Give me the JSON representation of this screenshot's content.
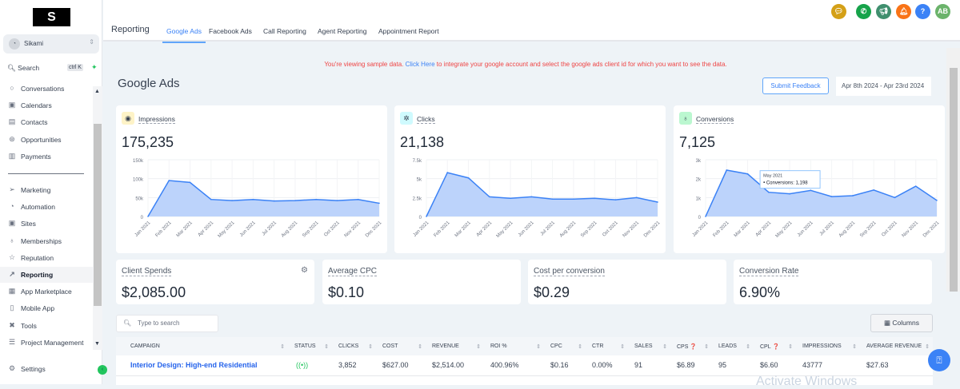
{
  "sidebar": {
    "logo": "S",
    "account": "Sikami",
    "search": "Search",
    "shortcut": "ctrl K",
    "items": [
      {
        "label": "Conversations",
        "icon": "chat-icon"
      },
      {
        "label": "Calendars",
        "icon": "calendar-icon"
      },
      {
        "label": "Contacts",
        "icon": "contacts-icon"
      },
      {
        "label": "Opportunities",
        "icon": "opportunities-icon"
      },
      {
        "label": "Payments",
        "icon": "payments-icon"
      }
    ],
    "items2": [
      {
        "label": "Marketing",
        "icon": "send-icon"
      },
      {
        "label": "Automation",
        "icon": "automation-icon"
      },
      {
        "label": "Sites",
        "icon": "sites-icon"
      },
      {
        "label": "Memberships",
        "icon": "award-icon"
      },
      {
        "label": "Reputation",
        "icon": "star-icon"
      },
      {
        "label": "Reporting",
        "icon": "trending-up-icon",
        "active": true
      },
      {
        "label": "App Marketplace",
        "icon": "grid-icon"
      },
      {
        "label": "Mobile App",
        "icon": "mobile-icon"
      },
      {
        "label": "Tools",
        "icon": "tools-icon"
      },
      {
        "label": "Project Management",
        "icon": "list-icon"
      }
    ],
    "settings": "Settings"
  },
  "topbar": {
    "title": "Reporting",
    "tabs": [
      "Google Ads",
      "Facebook Ads",
      "Call Reporting",
      "Agent Reporting",
      "Appointment Report"
    ],
    "active_tab": "Google Ads",
    "avatar": "AB",
    "help": "?",
    "icon_colors": {
      "chat": "#d4a017",
      "phone": "#16a34a",
      "megaphone": "#3f8f6e",
      "bell": "#f97316",
      "help": "#3b82f6",
      "avatar": "#6bb36b"
    }
  },
  "notice": {
    "prefix": "You're viewing sample data.",
    "link": "Click Here",
    "suffix": "to integrate your google account and select the google ads client id for which you want to see the data."
  },
  "page": {
    "title": "Google Ads",
    "feedback": "Submit Feedback",
    "date_range": "Apr 8th 2024 - Apr 23rd 2024"
  },
  "metrics": [
    {
      "label": "Impressions",
      "value": "175,235",
      "icon": "eye-icon"
    },
    {
      "label": "Clicks",
      "value": "21,138",
      "icon": "cursor-click-icon"
    },
    {
      "label": "Conversions",
      "value": "7,125",
      "icon": "bulb-icon"
    }
  ],
  "chart_data": [
    {
      "type": "area",
      "title": "Impressions",
      "categories": [
        "Jan 2021",
        "Feb 2021",
        "Mar 2021",
        "Apr 2021",
        "May 2021",
        "Jun 2021",
        "Jul 2021",
        "Aug 2021",
        "Sep 2021",
        "Oct 2021",
        "Nov 2021",
        "Dec 2021"
      ],
      "values": [
        0,
        95000,
        90000,
        45000,
        42000,
        45000,
        41000,
        42000,
        45000,
        42000,
        45000,
        35000
      ],
      "ylim": [
        0,
        150000
      ],
      "yticks": [
        "0",
        "50k",
        "100k",
        "150k"
      ],
      "grid": true,
      "color": "#3b82f6"
    },
    {
      "type": "area",
      "title": "Clicks",
      "categories": [
        "Jan 2021",
        "Feb 2021",
        "Mar 2021",
        "Apr 2021",
        "May 2021",
        "Jun 2021",
        "Jul 2021",
        "Aug 2021",
        "Sep 2021",
        "Oct 2021",
        "Nov 2021",
        "Dec 2021"
      ],
      "values": [
        0,
        5800,
        5100,
        2600,
        2400,
        2600,
        2300,
        2300,
        2400,
        2200,
        2500,
        1900
      ],
      "ylim": [
        0,
        7500
      ],
      "yticks": [
        "0",
        "2.5k",
        "5k",
        "7.5k"
      ],
      "grid": true,
      "color": "#3b82f6"
    },
    {
      "type": "area",
      "title": "Conversions",
      "categories": [
        "Jan 2021",
        "Feb 2021",
        "Mar 2021",
        "Apr 2021",
        "May 2021",
        "Jun 2021",
        "Jul 2021",
        "Aug 2021",
        "Sep 2021",
        "Oct 2021",
        "Nov 2021",
        "Dec 2021"
      ],
      "values": [
        0,
        2450,
        2250,
        1280,
        1198,
        1380,
        1050,
        1100,
        1400,
        1000,
        1600,
        850
      ],
      "ylim": [
        0,
        3000
      ],
      "yticks": [
        "0",
        "1k",
        "2k",
        "3k"
      ],
      "grid": true,
      "color": "#3b82f6",
      "tooltip": {
        "title": "May 2021",
        "text": "Conversions: 1,198"
      }
    }
  ],
  "stats": [
    {
      "label": "Client Spends",
      "value": "$2,085.00"
    },
    {
      "label": "Average CPC",
      "value": "$0.10"
    },
    {
      "label": "Cost per conversion",
      "value": "$0.29"
    },
    {
      "label": "Conversion Rate",
      "value": "6.90%"
    }
  ],
  "table": {
    "search_placeholder": "Type to search",
    "columns_button": "Columns",
    "headers": [
      "CAMPAIGN",
      "STATUS",
      "CLICKS",
      "COST",
      "REVENUE",
      "ROI %",
      "CPC",
      "CTR",
      "SALES",
      "CPS",
      "LEADS",
      "CPL",
      "IMPRESSIONS",
      "AVERAGE REVENUE"
    ],
    "rows": [
      {
        "campaign": "Interior Design: High-end Residential",
        "clicks": "3,852",
        "cost": "$627.00",
        "revenue": "$2,514.00",
        "roi": "400.96%",
        "cpc": "$0.16",
        "ctr": "0.00%",
        "sales": "91",
        "cps": "$6.89",
        "leads": "95",
        "cpl": "$6.60",
        "impressions": "43777",
        "avg_revenue": "$27.63"
      }
    ]
  },
  "watermark": "Activate Windows"
}
